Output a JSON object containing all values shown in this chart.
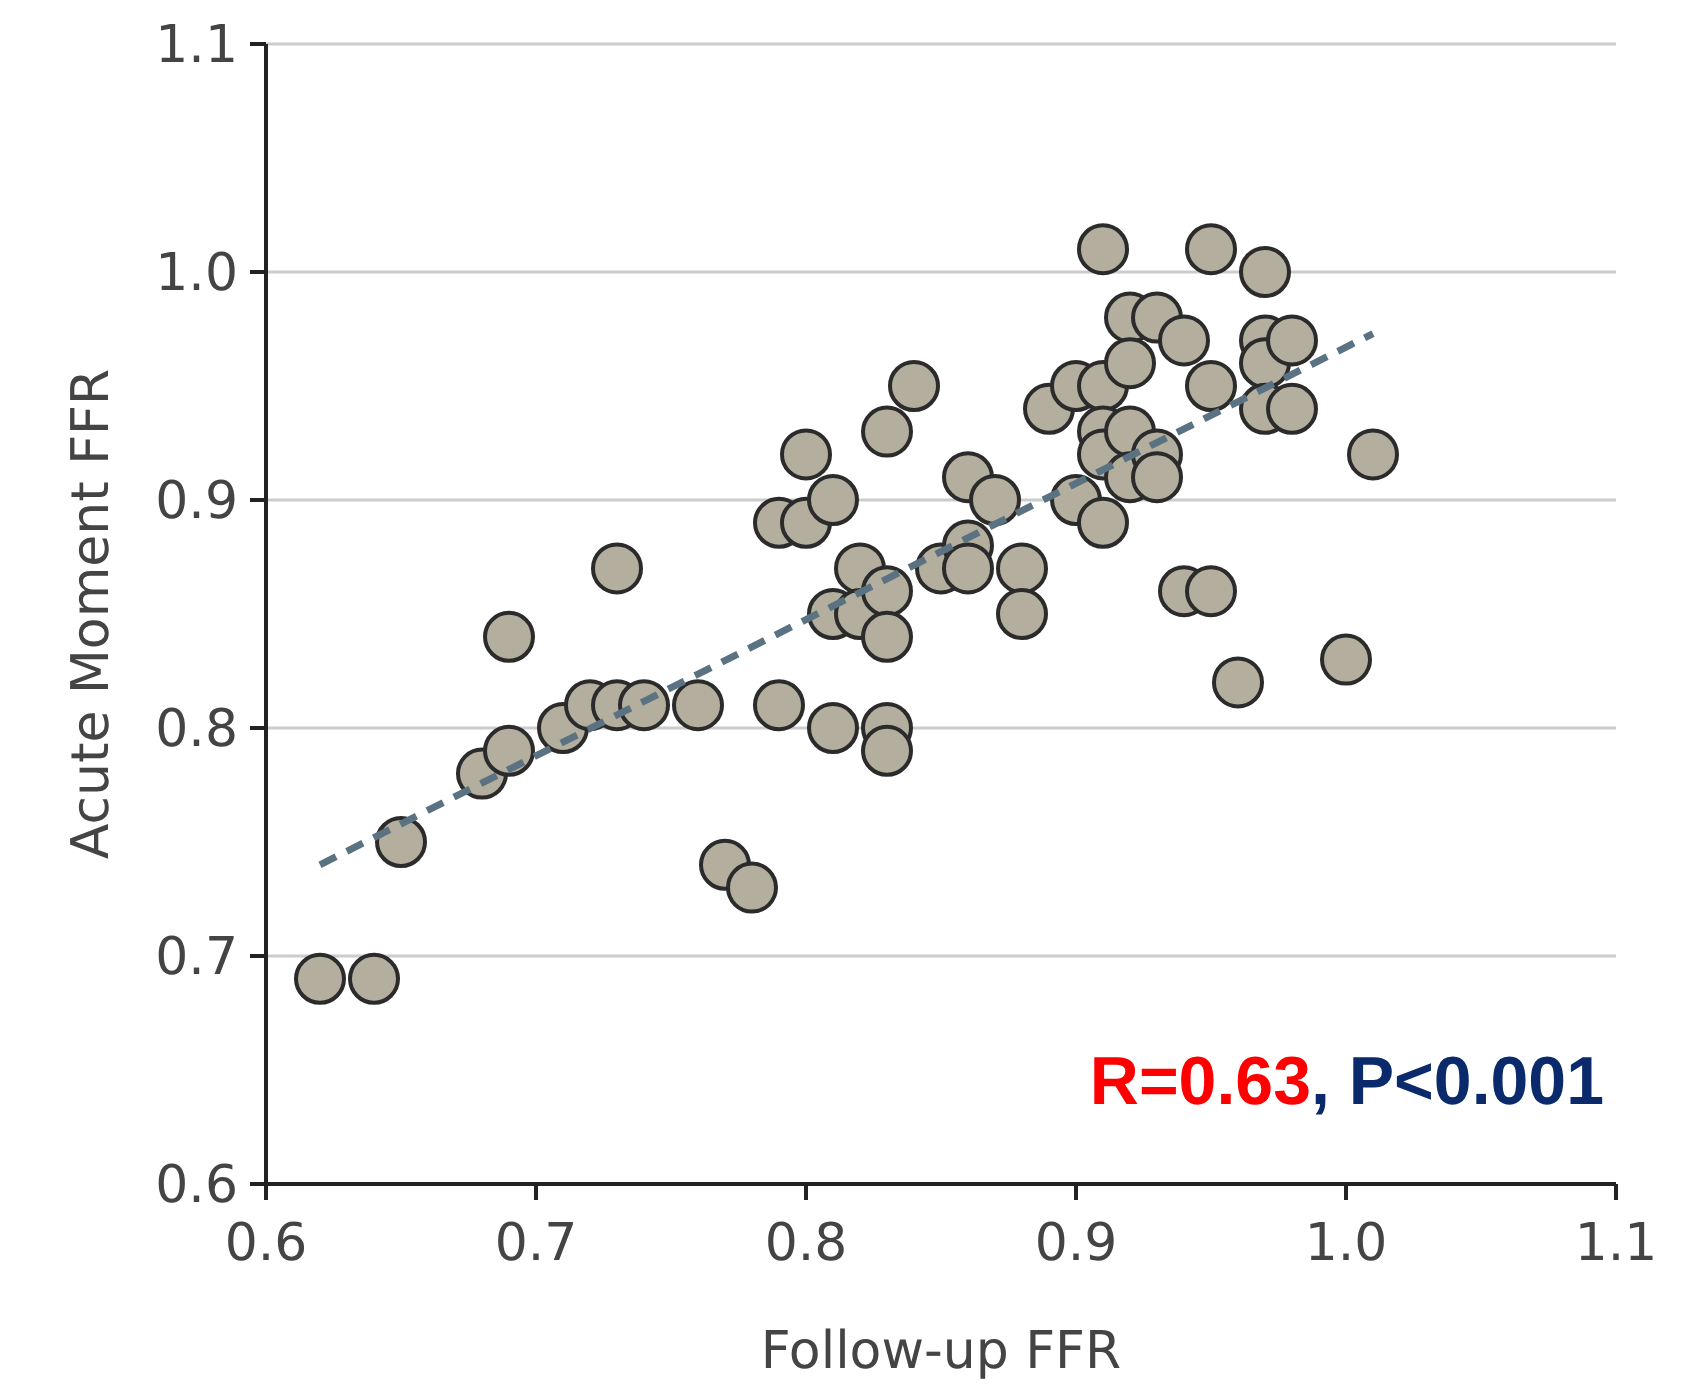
{
  "chart_data": {
    "type": "scatter",
    "xlabel": "Follow-up FFR",
    "ylabel": "Acute Moment FFR",
    "xlim": [
      0.6,
      1.1
    ],
    "ylim": [
      0.6,
      1.1
    ],
    "xticks": [
      0.6,
      0.7,
      0.8,
      0.9,
      {
        "value": 1,
        "label": "1.0"
      },
      1.1
    ],
    "yticks": [
      0.6,
      0.7,
      0.8,
      0.9,
      {
        "value": 1,
        "label": "1.0"
      },
      1.1
    ],
    "grid": "y",
    "annotations": [
      "R=0.63",
      ", P<0.001"
    ],
    "series": [
      {
        "color": "#b3ae9e",
        "marker": "circle",
        "x": [
          0.62,
          0.64,
          0.65,
          0.68,
          0.69,
          0.69,
          0.71,
          0.72,
          0.73,
          0.73,
          0.74,
          0.76,
          0.77,
          0.78,
          0.79,
          0.79,
          0.8,
          0.8,
          0.81,
          0.81,
          0.81,
          0.82,
          0.82,
          0.83,
          0.83,
          0.83,
          0.83,
          0.83,
          0.84,
          0.85,
          0.86,
          0.86,
          0.86,
          0.87,
          0.88,
          0.88,
          0.89,
          0.9,
          0.9,
          0.91,
          0.91,
          0.91,
          0.91,
          0.91,
          0.92,
          0.92,
          0.92,
          0.92,
          0.93,
          0.93,
          0.93,
          0.94,
          0.94,
          0.95,
          0.95,
          0.95,
          0.96,
          0.97,
          0.97,
          0.97,
          0.97,
          0.98,
          0.98,
          1.0,
          1.01
        ],
        "values": [
          0.69,
          0.69,
          0.75,
          0.78,
          0.79,
          0.84,
          0.8,
          0.81,
          0.81,
          0.87,
          0.81,
          0.81,
          0.74,
          0.73,
          0.81,
          0.89,
          0.89,
          0.92,
          0.9,
          0.85,
          0.8,
          0.87,
          0.85,
          0.86,
          0.84,
          0.8,
          0.79,
          0.93,
          0.95,
          0.87,
          0.91,
          0.88,
          0.87,
          0.9,
          0.87,
          0.85,
          0.94,
          0.95,
          0.9,
          1.01,
          0.95,
          0.93,
          0.92,
          0.89,
          0.98,
          0.96,
          0.93,
          0.91,
          0.98,
          0.92,
          0.91,
          0.97,
          0.86,
          1.01,
          0.95,
          0.86,
          0.82,
          1.0,
          0.97,
          0.96,
          0.94,
          0.97,
          0.94,
          0.83,
          0.92
        ]
      },
      {
        "type": "line",
        "color": "#5b7282",
        "marker": "none",
        "line_style": "dashed",
        "x": [
          0.62,
          1.01
        ],
        "values": [
          0.74,
          0.973
        ]
      }
    ]
  }
}
